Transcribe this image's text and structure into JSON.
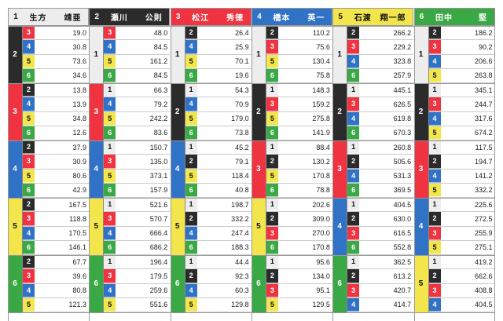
{
  "colors": {
    "1": {
      "bg": "#ededed",
      "fg": "#111111"
    },
    "2": {
      "bg": "#2b2b2b",
      "fg": "#ffffff"
    },
    "3": {
      "bg": "#ef3340",
      "fg": "#ffffff"
    },
    "4": {
      "bg": "#2f72c6",
      "fg": "#ffffff"
    },
    "5": {
      "bg": "#f2e64c",
      "fg": "#111111"
    },
    "6": {
      "bg": "#3aa845",
      "fg": "#ffffff"
    }
  },
  "columns": [
    {
      "first": "1",
      "name": "生方　　靖亜",
      "groups": [
        {
          "second": "2",
          "rows": [
            [
              "3",
              "19.0"
            ],
            [
              "4",
              "30.8"
            ],
            [
              "5",
              "73.6"
            ],
            [
              "6",
              "34.6"
            ]
          ]
        },
        {
          "second": "3",
          "rows": [
            [
              "2",
              "13.8"
            ],
            [
              "4",
              "13.9"
            ],
            [
              "5",
              "34.8"
            ],
            [
              "6",
              "12.6"
            ]
          ]
        },
        {
          "second": "4",
          "rows": [
            [
              "2",
              "37.9"
            ],
            [
              "3",
              "30.9"
            ],
            [
              "5",
              "80.6"
            ],
            [
              "6",
              "42.9"
            ]
          ]
        },
        {
          "second": "5",
          "rows": [
            [
              "2",
              "167.5"
            ],
            [
              "3",
              "118.8"
            ],
            [
              "4",
              "170.5"
            ],
            [
              "6",
              "146.1"
            ]
          ]
        },
        {
          "second": "6",
          "rows": [
            [
              "2",
              "67.7"
            ],
            [
              "3",
              "39.6"
            ],
            [
              "4",
              "80.8"
            ],
            [
              "5",
              "121.3"
            ]
          ]
        }
      ]
    },
    {
      "first": "2",
      "name": "瀬川　　公則",
      "groups": [
        {
          "second": "1",
          "rows": [
            [
              "3",
              "48.0"
            ],
            [
              "4",
              "84.5"
            ],
            [
              "5",
              "161.2"
            ],
            [
              "6",
              "84.5"
            ]
          ]
        },
        {
          "second": "3",
          "rows": [
            [
              "1",
              "66.3"
            ],
            [
              "4",
              "79.2"
            ],
            [
              "5",
              "242.2"
            ],
            [
              "6",
              "83.6"
            ]
          ]
        },
        {
          "second": "4",
          "rows": [
            [
              "1",
              "150.7"
            ],
            [
              "3",
              "135.0"
            ],
            [
              "5",
              "373.1"
            ],
            [
              "6",
              "157.9"
            ]
          ]
        },
        {
          "second": "5",
          "rows": [
            [
              "1",
              "521.6"
            ],
            [
              "3",
              "570.7"
            ],
            [
              "4",
              "666.4"
            ],
            [
              "6",
              "686.2"
            ]
          ]
        },
        {
          "second": "6",
          "rows": [
            [
              "1",
              "196.4"
            ],
            [
              "3",
              "179.5"
            ],
            [
              "4",
              "259.6"
            ],
            [
              "5",
              "551.6"
            ]
          ]
        }
      ]
    },
    {
      "first": "3",
      "name": "松江　　秀徳",
      "groups": [
        {
          "second": "1",
          "rows": [
            [
              "2",
              "26.4"
            ],
            [
              "4",
              "25.9"
            ],
            [
              "5",
              "70.1"
            ],
            [
              "6",
              "19.6"
            ]
          ]
        },
        {
          "second": "2",
          "rows": [
            [
              "1",
              "54.3"
            ],
            [
              "4",
              "70.9"
            ],
            [
              "5",
              "179.0"
            ],
            [
              "6",
              "73.8"
            ]
          ]
        },
        {
          "second": "4",
          "rows": [
            [
              "1",
              "45.2"
            ],
            [
              "2",
              "79.1"
            ],
            [
              "5",
              "118.4"
            ],
            [
              "6",
              "40.8"
            ]
          ]
        },
        {
          "second": "5",
          "rows": [
            [
              "1",
              "198.7"
            ],
            [
              "2",
              "332.2"
            ],
            [
              "4",
              "247.4"
            ],
            [
              "6",
              "188.3"
            ]
          ]
        },
        {
          "second": "6",
          "rows": [
            [
              "1",
              "44.4"
            ],
            [
              "2",
              "92.3"
            ],
            [
              "4",
              "60.3"
            ],
            [
              "5",
              "129.8"
            ]
          ]
        }
      ]
    },
    {
      "first": "4",
      "name": "橋本　　英一",
      "groups": [
        {
          "second": "1",
          "rows": [
            [
              "2",
              "110.2"
            ],
            [
              "3",
              "75.6"
            ],
            [
              "5",
              "130.4"
            ],
            [
              "6",
              "75.8"
            ]
          ]
        },
        {
          "second": "2",
          "rows": [
            [
              "1",
              "148.3"
            ],
            [
              "3",
              "159.2"
            ],
            [
              "5",
              "275.8"
            ],
            [
              "6",
              "141.9"
            ]
          ]
        },
        {
          "second": "3",
          "rows": [
            [
              "1",
              "88.4"
            ],
            [
              "2",
              "130.2"
            ],
            [
              "5",
              "170.8"
            ],
            [
              "6",
              "78.8"
            ]
          ]
        },
        {
          "second": "5",
          "rows": [
            [
              "1",
              "202.6"
            ],
            [
              "2",
              "309.0"
            ],
            [
              "3",
              "270.0"
            ],
            [
              "6",
              "170.8"
            ]
          ]
        },
        {
          "second": "6",
          "rows": [
            [
              "1",
              "95.6"
            ],
            [
              "2",
              "134.0"
            ],
            [
              "3",
              "95.1"
            ],
            [
              "5",
              "129.5"
            ]
          ]
        }
      ]
    },
    {
      "first": "5",
      "name": "石渡　翔一郎",
      "groups": [
        {
          "second": "1",
          "rows": [
            [
              "2",
              "266.2"
            ],
            [
              "3",
              "229.2"
            ],
            [
              "4",
              "323.8"
            ],
            [
              "6",
              "257.9"
            ]
          ]
        },
        {
          "second": "2",
          "rows": [
            [
              "1",
              "445.1"
            ],
            [
              "3",
              "626.5"
            ],
            [
              "4",
              "619.8"
            ],
            [
              "6",
              "670.3"
            ]
          ]
        },
        {
          "second": "3",
          "rows": [
            [
              "1",
              "260.8"
            ],
            [
              "2",
              "505.6"
            ],
            [
              "4",
              "531.3"
            ],
            [
              "6",
              "369.5"
            ]
          ]
        },
        {
          "second": "4",
          "rows": [
            [
              "1",
              "404.5"
            ],
            [
              "2",
              "630.0"
            ],
            [
              "3",
              "616.5"
            ],
            [
              "6",
              "552.8"
            ]
          ]
        },
        {
          "second": "6",
          "rows": [
            [
              "1",
              "362.5"
            ],
            [
              "2",
              "613.2"
            ],
            [
              "3",
              "420.7"
            ],
            [
              "4",
              "414.7"
            ]
          ]
        }
      ]
    },
    {
      "first": "6",
      "name": "田中　　　堅",
      "groups": [
        {
          "second": "1",
          "rows": [
            [
              "2",
              "186.2"
            ],
            [
              "3",
              "90.2"
            ],
            [
              "4",
              "206.6"
            ],
            [
              "5",
              "263.8"
            ]
          ]
        },
        {
          "second": "2",
          "rows": [
            [
              "1",
              "345.1"
            ],
            [
              "3",
              "244.7"
            ],
            [
              "4",
              "317.6"
            ],
            [
              "5",
              "674.2"
            ]
          ]
        },
        {
          "second": "3",
          "rows": [
            [
              "1",
              "117.5"
            ],
            [
              "2",
              "194.7"
            ],
            [
              "4",
              "141.2"
            ],
            [
              "5",
              "332.2"
            ]
          ]
        },
        {
          "second": "4",
          "rows": [
            [
              "1",
              "225.6"
            ],
            [
              "2",
              "272.5"
            ],
            [
              "3",
              "255.9"
            ],
            [
              "5",
              "275.1"
            ]
          ]
        },
        {
          "second": "5",
          "rows": [
            [
              "1",
              "419.2"
            ],
            [
              "2",
              "662.6"
            ],
            [
              "3",
              "408.8"
            ],
            [
              "4",
              "404.5"
            ]
          ]
        }
      ]
    }
  ]
}
